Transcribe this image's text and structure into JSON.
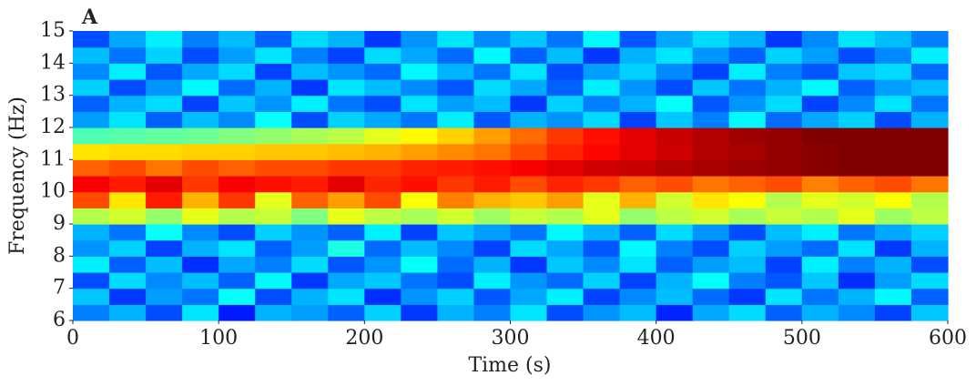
{
  "chart_data": {
    "type": "heatmap",
    "panel_label": "A",
    "xlabel": "Time (s)",
    "ylabel": "Frequency (Hz)",
    "colormap": "jet",
    "xlim": [
      0,
      600
    ],
    "xticks": [
      0,
      100,
      200,
      300,
      400,
      500,
      600
    ],
    "ylim": [
      6,
      15
    ],
    "yticks": [
      6,
      7,
      8,
      9,
      10,
      11,
      12,
      13,
      14,
      15
    ],
    "z": [
      [
        0.25,
        0.3,
        0.2,
        0.35,
        0.15,
        0.3,
        0.28,
        0.22,
        0.33,
        0.18,
        0.3,
        0.25,
        0.35,
        0.2,
        0.27,
        0.31,
        0.16,
        0.29,
        0.34,
        0.22,
        0.3,
        0.26,
        0.19,
        0.32
      ],
      [
        0.32,
        0.18,
        0.28,
        0.24,
        0.38,
        0.2,
        0.3,
        0.35,
        0.17,
        0.27,
        0.33,
        0.21,
        0.29,
        0.36,
        0.19,
        0.26,
        0.31,
        0.23,
        0.18,
        0.35,
        0.24,
        0.3,
        0.37,
        0.22
      ],
      [
        0.2,
        0.34,
        0.26,
        0.31,
        0.22,
        0.37,
        0.18,
        0.29,
        0.32,
        0.24,
        0.2,
        0.36,
        0.27,
        0.23,
        0.33,
        0.19,
        0.3,
        0.38,
        0.25,
        0.21,
        0.32,
        0.17,
        0.28,
        0.34
      ],
      [
        0.36,
        0.22,
        0.31,
        0.17,
        0.29,
        0.25,
        0.34,
        0.21,
        0.27,
        0.38,
        0.23,
        0.3,
        0.18,
        0.32,
        0.26,
        0.35,
        0.22,
        0.28,
        0.31,
        0.19,
        0.36,
        0.25,
        0.3,
        0.2
      ],
      [
        0.27,
        0.33,
        0.19,
        0.3,
        0.35,
        0.22,
        0.28,
        0.4,
        0.23,
        0.31,
        0.26,
        0.19,
        0.34,
        0.29,
        0.21,
        0.37,
        0.25,
        0.2,
        0.33,
        0.28,
        0.23,
        0.35,
        0.18,
        0.3
      ],
      [
        0.3,
        0.24,
        0.38,
        0.26,
        0.2,
        0.33,
        0.27,
        0.22,
        0.36,
        0.19,
        0.32,
        0.28,
        0.24,
        0.37,
        0.3,
        0.22,
        0.34,
        0.27,
        0.2,
        0.31,
        0.36,
        0.24,
        0.29,
        0.33
      ],
      [
        0.55,
        0.58,
        0.52,
        0.6,
        0.55,
        0.57,
        0.5,
        0.6,
        0.56,
        0.54,
        0.58,
        0.53,
        0.57,
        0.55,
        0.6,
        0.52,
        0.56,
        0.58,
        0.54,
        0.57,
        0.55,
        0.6,
        0.53,
        0.56
      ],
      [
        0.8,
        0.65,
        0.85,
        0.7,
        0.82,
        0.6,
        0.78,
        0.72,
        0.8,
        0.62,
        0.75,
        0.7,
        0.68,
        0.72,
        0.6,
        0.7,
        0.58,
        0.65,
        0.62,
        0.55,
        0.6,
        0.58,
        0.62,
        0.55
      ],
      [
        0.88,
        0.85,
        0.9,
        0.82,
        0.88,
        0.86,
        0.85,
        0.9,
        0.84,
        0.86,
        0.82,
        0.85,
        0.8,
        0.84,
        0.82,
        0.78,
        0.8,
        0.76,
        0.78,
        0.8,
        0.75,
        0.78,
        0.8,
        0.76
      ],
      [
        0.78,
        0.8,
        0.76,
        0.8,
        0.78,
        0.8,
        0.8,
        0.82,
        0.82,
        0.84,
        0.85,
        0.86,
        0.88,
        0.9,
        0.92,
        0.93,
        0.95,
        0.96,
        0.97,
        0.98,
        0.99,
        1,
        1,
        1
      ],
      [
        0.65,
        0.66,
        0.66,
        0.67,
        0.67,
        0.68,
        0.68,
        0.69,
        0.7,
        0.72,
        0.74,
        0.76,
        0.8,
        0.84,
        0.87,
        0.9,
        0.92,
        0.95,
        0.96,
        0.98,
        0.99,
        1,
        1,
        1
      ],
      [
        0.45,
        0.46,
        0.47,
        0.48,
        0.5,
        0.52,
        0.54,
        0.56,
        0.6,
        0.63,
        0.67,
        0.72,
        0.77,
        0.82,
        0.86,
        0.9,
        0.93,
        0.95,
        0.97,
        0.98,
        1,
        1,
        1,
        1
      ],
      [
        0.28,
        0.35,
        0.22,
        0.31,
        0.26,
        0.38,
        0.2,
        0.33,
        0.29,
        0.24,
        0.36,
        0.21,
        0.3,
        0.27,
        0.34,
        0.19,
        0.32,
        0.25,
        0.37,
        0.23,
        0.29,
        0.33,
        0.2,
        0.3
      ],
      [
        0.22,
        0.3,
        0.34,
        0.19,
        0.32,
        0.27,
        0.36,
        0.24,
        0.2,
        0.35,
        0.28,
        0.31,
        0.18,
        0.33,
        0.25,
        0.3,
        0.38,
        0.21,
        0.27,
        0.34,
        0.19,
        0.26,
        0.35,
        0.24
      ],
      [
        0.33,
        0.2,
        0.27,
        0.37,
        0.23,
        0.3,
        0.18,
        0.35,
        0.31,
        0.26,
        0.21,
        0.34,
        0.29,
        0.22,
        0.36,
        0.27,
        0.2,
        0.32,
        0.24,
        0.3,
        0.37,
        0.22,
        0.28,
        0.31
      ],
      [
        0.26,
        0.36,
        0.21,
        0.29,
        0.34,
        0.19,
        0.31,
        0.27,
        0.23,
        0.37,
        0.3,
        0.24,
        0.35,
        0.2,
        0.28,
        0.33,
        0.26,
        0.19,
        0.36,
        0.25,
        0.21,
        0.32,
        0.34,
        0.23
      ],
      [
        0.31,
        0.24,
        0.33,
        0.2,
        0.28,
        0.35,
        0.25,
        0.19,
        0.34,
        0.29,
        0.23,
        0.37,
        0.22,
        0.31,
        0.18,
        0.3,
        0.35,
        0.27,
        0.22,
        0.33,
        0.28,
        0.2,
        0.26,
        0.36
      ],
      [
        0.2,
        0.29,
        0.36,
        0.25,
        0.31,
        0.22,
        0.34,
        0.3,
        0.18,
        0.27,
        0.35,
        0.26,
        0.32,
        0.24,
        0.37,
        0.21,
        0.29,
        0.34,
        0.3,
        0.18,
        0.26,
        0.35,
        0.31,
        0.25
      ]
    ]
  }
}
